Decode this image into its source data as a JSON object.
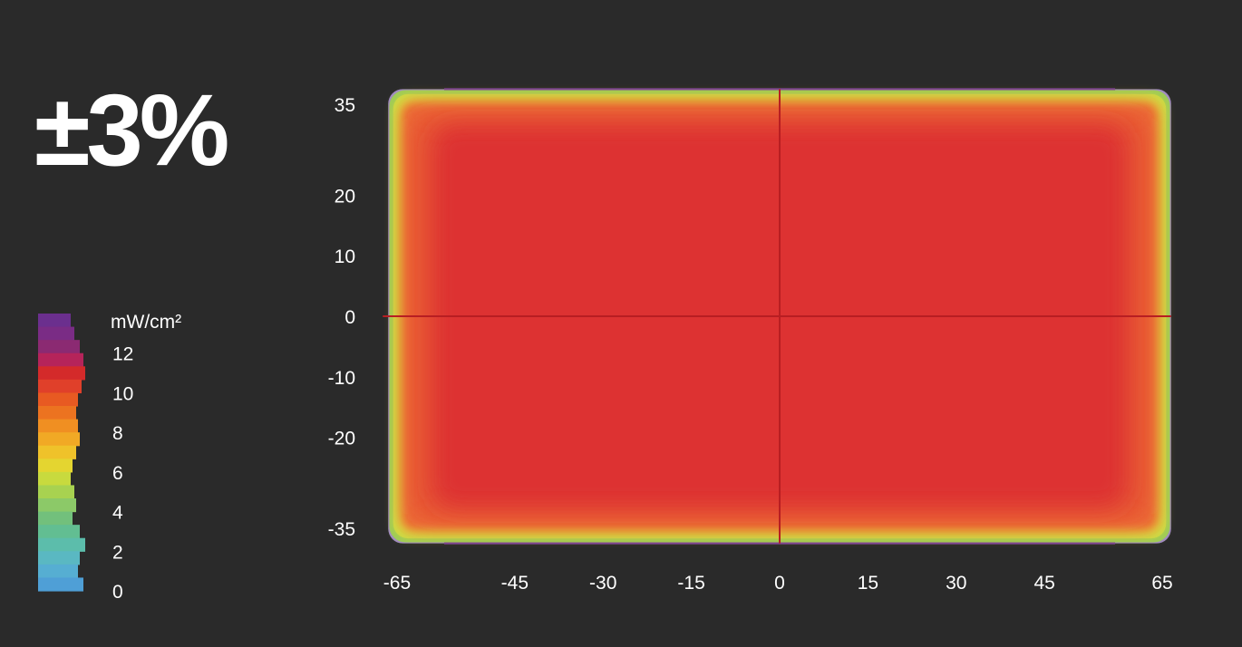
{
  "headline": "±3%",
  "chart_data": {
    "type": "heatmap",
    "title": "",
    "x_ticks": [
      -65,
      -45,
      -30,
      -15,
      0,
      15,
      30,
      45,
      65
    ],
    "y_ticks": [
      35,
      20,
      10,
      0,
      -10,
      -20,
      -35
    ],
    "xlim": [
      -67,
      67
    ],
    "ylim": [
      -38,
      38
    ],
    "grid": "crosshair at 0,0",
    "colorbar": {
      "unit": "mW/cm²",
      "tick_labels": [
        12,
        10,
        8,
        6,
        4,
        2,
        0
      ],
      "range": [
        0,
        14
      ]
    },
    "field": {
      "center_irradiance": 12,
      "edge_irradiance": 6,
      "border_irradiance": 1
    },
    "colors": {
      "background": "#2a2a2a",
      "core": "#dd3030",
      "orange": "#ec6a36",
      "yellow": "#dfe23a",
      "green": "#9ccc58",
      "purple": "#7a3e9a",
      "crosshair": "#b81e22"
    },
    "colorbar_colors": [
      "#6b2f8e",
      "#7a2c85",
      "#8b2a72",
      "#b5245a",
      "#d42a2a",
      "#e0402a",
      "#e85a22",
      "#ec7320",
      "#f08f22",
      "#f1a925",
      "#efc22a",
      "#e4d530",
      "#c8da3e",
      "#a8d250",
      "#8cc968",
      "#72c07c",
      "#62be92",
      "#5cbdab",
      "#5ab8c2",
      "#56aed2",
      "#4f9fd6"
    ],
    "colorbar_widths": [
      36,
      40,
      46,
      50,
      52,
      48,
      44,
      42,
      44,
      46,
      42,
      38,
      36,
      40,
      42,
      38,
      46,
      52,
      46,
      44,
      50
    ]
  }
}
